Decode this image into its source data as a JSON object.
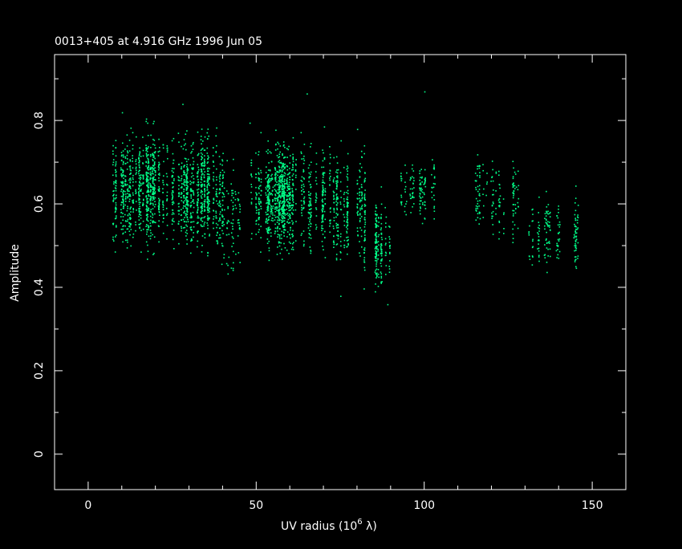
{
  "chart_data": {
    "type": "scatter",
    "title": "0013+405 at 4.916 GHz 1996 Jun 05",
    "xlabel": "UV radius  (10",
    "xlabel_exp": "6",
    "xlabel_unit": " λ)",
    "ylabel": "Amplitude",
    "xlim": [
      -10,
      160
    ],
    "ylim": [
      -0.085,
      0.958
    ],
    "x_ticks": [
      0,
      50,
      100,
      150
    ],
    "x_tick_labels": [
      "0",
      "50",
      "100",
      "150"
    ],
    "x_minor_step": 10,
    "y_ticks": [
      0,
      0.2,
      0.4,
      0.6,
      0.8
    ],
    "y_tick_labels": [
      "0",
      "0.2",
      "0.4",
      "0.6",
      "0.8"
    ],
    "y_minor_step": 0.1,
    "grid": false,
    "point_color": "#00ff88",
    "axis_color": "#ffffff",
    "background": "#000000",
    "point_clusters": [
      {
        "x_range": [
          4,
          40
        ],
        "y_mean": 0.635,
        "y_spread": 0.06,
        "n": 1500
      },
      {
        "x_range": [
          38,
          46
        ],
        "y_mean": 0.57,
        "y_spread": 0.06,
        "n": 120
      },
      {
        "x_range": [
          46,
          62
        ],
        "y_mean": 0.62,
        "y_spread": 0.055,
        "n": 500
      },
      {
        "x_range": [
          56,
          72
        ],
        "y_mean": 0.62,
        "y_spread": 0.06,
        "n": 550
      },
      {
        "x_range": [
          72,
          83
        ],
        "y_mean": 0.6,
        "y_spread": 0.055,
        "n": 280
      },
      {
        "x_range": [
          82,
          90
        ],
        "y_mean": 0.5,
        "y_spread": 0.05,
        "n": 200
      },
      {
        "x_range": [
          93,
          103
        ],
        "y_mean": 0.63,
        "y_spread": 0.035,
        "n": 130
      },
      {
        "x_range": [
          115,
          128
        ],
        "y_mean": 0.62,
        "y_spread": 0.045,
        "n": 150
      },
      {
        "x_range": [
          131,
          146
        ],
        "y_mean": 0.53,
        "y_spread": 0.04,
        "n": 170
      }
    ],
    "outliers": [
      [
        10,
        0.82
      ],
      [
        28,
        0.84
      ],
      [
        48,
        0.795
      ],
      [
        65,
        0.865
      ],
      [
        100,
        0.87
      ],
      [
        75,
        0.38
      ],
      [
        89,
        0.36
      ],
      [
        80,
        0.78
      ]
    ]
  }
}
